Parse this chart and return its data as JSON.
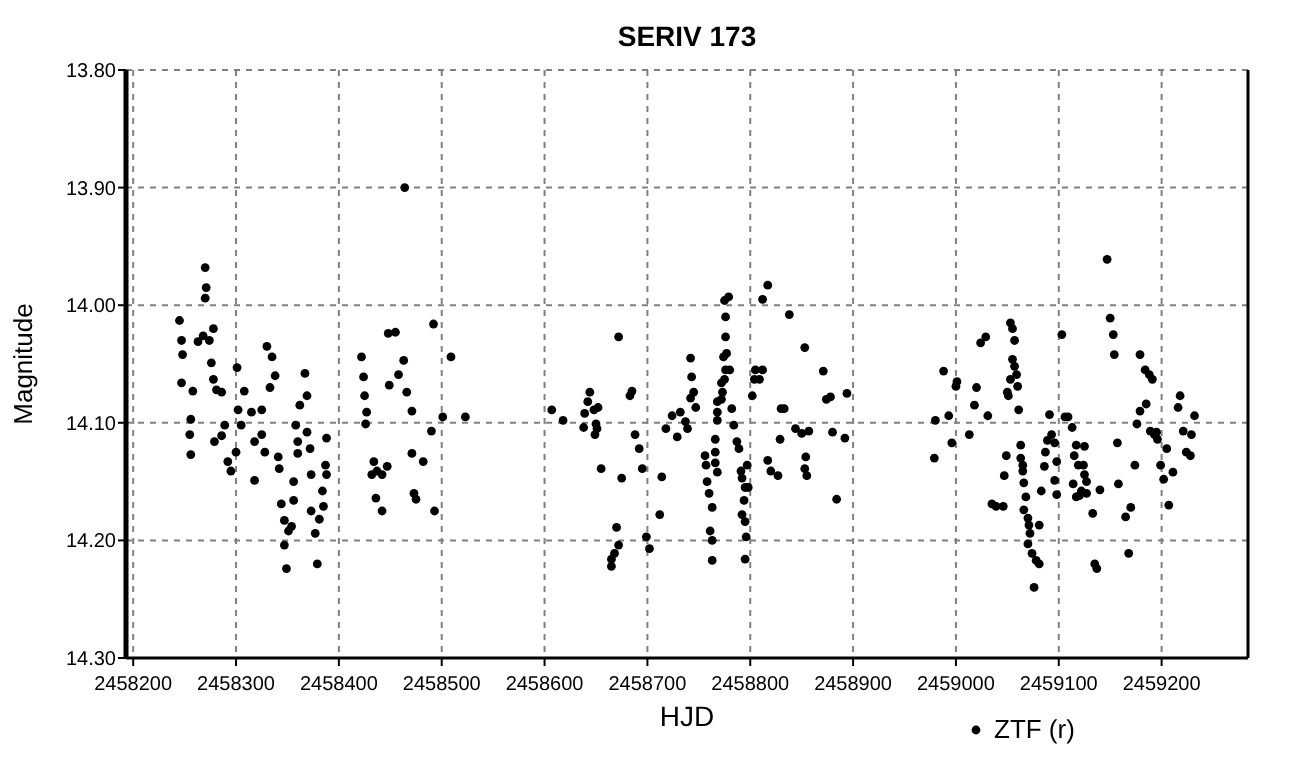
{
  "chart_data": {
    "type": "scatter",
    "title": "SERIV 173",
    "xlabel": "HJD",
    "ylabel": "Magnitude",
    "xlim": [
      2458193,
      2459284
    ],
    "ylim": [
      14.3,
      13.8
    ],
    "xticks": [
      2458200,
      2458300,
      2458400,
      2458500,
      2458600,
      2458700,
      2458800,
      2458900,
      2459000,
      2459100,
      2459200
    ],
    "yticks": [
      {
        "value": 13.8,
        "label": "13.80"
      },
      {
        "value": 13.9,
        "label": "13.90"
      },
      {
        "value": 14.0,
        "label": "14.00"
      },
      {
        "value": 14.1,
        "label": "14.10"
      },
      {
        "value": 14.2,
        "label": "14.20"
      },
      {
        "value": 14.3,
        "label": "14.30"
      }
    ],
    "grid": true,
    "legend": "bottom right",
    "marker": "circle",
    "series": [
      {
        "name": "ZTF (r)",
        "color": "#000000",
        "x": [
          2458245,
          2458247,
          2458248,
          2458247,
          2458258,
          2458256,
          2458255,
          2458256,
          2458270,
          2458271,
          2458270,
          2458268,
          2458263,
          2458274,
          2458278,
          2458276,
          2458278,
          2458281,
          2458286,
          2458279,
          2458286,
          2458289,
          2458292,
          2458295,
          2458300,
          2458301,
          2458308,
          2458302,
          2458305,
          2458315,
          2458318,
          2458325,
          2458330,
          2458335,
          2458338,
          2458333,
          2458325,
          2458328,
          2458318,
          2458341,
          2458342,
          2458344,
          2458347,
          2458351,
          2458347,
          2458349,
          2458356,
          2458356,
          2458354,
          2458358,
          2458360,
          2458362,
          2458367,
          2458369,
          2458360,
          2458372,
          2458369,
          2458373,
          2458373,
          2458377,
          2458379,
          2458381,
          2458384,
          2458387,
          2458388,
          2458388,
          2458385,
          2458422,
          2458424,
          2458425,
          2458427,
          2458426,
          2458434,
          2458432,
          2458437,
          2458442,
          2458447,
          2458436,
          2458442,
          2458448,
          2458455,
          2458458,
          2458463,
          2458449,
          2458466,
          2458471,
          2458471,
          2458473,
          2458475,
          2458482,
          2458490,
          2458492,
          2458493,
          2458501,
          2458509,
          2458523,
          2458464,
          2458607,
          2458618,
          2458638,
          2458639,
          2458644,
          2458642,
          2458648,
          2458652,
          2458650,
          2458651,
          2458649,
          2458655,
          2458672,
          2458675,
          2458670,
          2458672,
          2458665,
          2458665,
          2458668,
          2458683,
          2458685,
          2458688,
          2458692,
          2458695,
          2458699,
          2458702,
          2458712,
          2458714,
          2458718,
          2458724,
          2458729,
          2458732,
          2458737,
          2458739,
          2458742,
          2458743,
          2458742,
          2458745,
          2458747,
          2458756,
          2458757,
          2458758,
          2458760,
          2458763,
          2458761,
          2458763,
          2458763,
          2458766,
          2458766,
          2458768,
          2458768,
          2458768,
          2458768,
          2458766,
          2458775,
          2458776,
          2458776,
          2458774,
          2458776,
          2458775,
          2458779,
          2458777,
          2458780,
          2458772,
          2458773,
          2458772,
          2458782,
          2458784,
          2458787,
          2458789,
          2458791,
          2458792,
          2458795,
          2458794,
          2458792,
          2458795,
          2458796,
          2458795,
          2458798,
          2458797,
          2458802,
          2458804,
          2458805,
          2458812,
          2458809,
          2458812,
          2458817,
          2458817,
          2458820,
          2458827,
          2458829,
          2458830,
          2458833,
          2458838,
          2458844,
          2458850,
          2458853,
          2458854,
          2458853,
          2458855,
          2458857,
          2458871,
          2458874,
          2458878,
          2458880,
          2458884,
          2458892,
          2458894,
          2458980,
          2458979,
          2458988,
          2458993,
          2458996,
          2459000,
          2459001,
          2459013,
          2459018,
          2459020,
          2459024,
          2459029,
          2459031,
          2459035,
          2459039,
          2459046,
          2459047,
          2459049,
          2459053,
          2459055,
          2459057,
          2459055,
          2459057,
          2459059,
          2459053,
          2459050,
          2459051,
          2459060,
          2459061,
          2459063,
          2459063,
          2459065,
          2459065,
          2459066,
          2459068,
          2459066,
          2459070,
          2459071,
          2459072,
          2459070,
          2459074,
          2459078,
          2459081,
          2459076,
          2459081,
          2459083,
          2459086,
          2459087,
          2459089,
          2459093,
          2459091,
          2459096,
          2459098,
          2459096,
          2459098,
          2459103,
          2459106,
          2459109,
          2459113,
          2459117,
          2459115,
          2459119,
          2459124,
          2459125,
          2459125,
          2459127,
          2459122,
          2459114,
          2459117,
          2459120,
          2459127,
          2459133,
          2459135,
          2459137,
          2459140,
          2459147,
          2459150,
          2459153,
          2459154,
          2459157,
          2459158,
          2459165,
          2459170,
          2459168,
          2459174,
          2459176,
          2459179,
          2459179,
          2459185,
          2459184,
          2459188,
          2459191,
          2459189,
          2459193,
          2459196,
          2459195,
          2459199,
          2459202,
          2459205,
          2459207,
          2459211,
          2459216,
          2459218,
          2459221,
          2459224,
          2459228,
          2459229,
          2459232
        ],
        "values": [
          14.013,
          14.03,
          14.042,
          14.066,
          14.073,
          14.097,
          14.11,
          14.127,
          13.968,
          13.985,
          13.994,
          14.026,
          14.031,
          14.03,
          14.02,
          14.049,
          14.063,
          14.072,
          14.074,
          14.116,
          14.111,
          14.102,
          14.133,
          14.141,
          14.125,
          14.053,
          14.073,
          14.089,
          14.102,
          14.091,
          14.116,
          14.089,
          14.035,
          14.044,
          14.06,
          14.07,
          14.11,
          14.125,
          14.149,
          14.129,
          14.139,
          14.169,
          14.183,
          14.192,
          14.204,
          14.224,
          14.15,
          14.166,
          14.188,
          14.102,
          14.116,
          14.085,
          14.058,
          14.077,
          14.126,
          14.122,
          14.108,
          14.144,
          14.175,
          14.194,
          14.22,
          14.182,
          14.158,
          14.136,
          14.113,
          14.144,
          14.171,
          14.044,
          14.061,
          14.077,
          14.091,
          14.101,
          14.133,
          14.144,
          14.141,
          14.144,
          14.137,
          14.164,
          14.175,
          14.024,
          14.023,
          14.059,
          14.047,
          14.068,
          14.074,
          14.09,
          14.126,
          14.16,
          14.165,
          14.133,
          14.107,
          14.016,
          14.175,
          14.095,
          14.044,
          14.095,
          13.9,
          14.089,
          14.098,
          14.104,
          14.092,
          14.074,
          14.082,
          14.089,
          14.087,
          14.101,
          14.105,
          14.11,
          14.139,
          14.027,
          14.147,
          14.189,
          14.204,
          14.216,
          14.222,
          14.211,
          14.077,
          14.073,
          14.11,
          14.122,
          14.139,
          14.197,
          14.207,
          14.178,
          14.146,
          14.105,
          14.094,
          14.112,
          14.091,
          14.099,
          14.105,
          14.045,
          14.061,
          14.079,
          14.074,
          14.087,
          14.128,
          14.136,
          14.15,
          14.16,
          14.172,
          14.192,
          14.2,
          14.217,
          14.125,
          14.114,
          14.098,
          14.091,
          14.082,
          14.142,
          14.134,
          13.996,
          14.01,
          14.027,
          14.044,
          14.055,
          14.063,
          13.993,
          14.041,
          14.055,
          14.066,
          14.074,
          14.08,
          14.088,
          14.102,
          14.116,
          14.122,
          14.141,
          14.147,
          14.155,
          14.166,
          14.178,
          14.184,
          14.197,
          14.216,
          14.155,
          14.136,
          14.077,
          14.063,
          14.055,
          14.055,
          14.063,
          13.995,
          13.983,
          14.132,
          14.141,
          14.145,
          14.114,
          14.088,
          14.088,
          14.008,
          14.105,
          14.109,
          14.036,
          14.129,
          14.139,
          14.145,
          14.107,
          14.056,
          14.08,
          14.078,
          14.108,
          14.165,
          14.113,
          14.075,
          14.098,
          14.13,
          14.056,
          14.094,
          14.117,
          14.069,
          14.065,
          14.11,
          14.085,
          14.07,
          14.032,
          14.027,
          14.094,
          14.169,
          14.171,
          14.171,
          14.145,
          14.128,
          14.015,
          14.02,
          14.03,
          14.046,
          14.052,
          14.059,
          14.063,
          14.074,
          14.077,
          14.069,
          14.089,
          14.119,
          14.13,
          14.136,
          14.141,
          14.151,
          14.163,
          14.174,
          14.181,
          14.187,
          14.194,
          14.203,
          14.211,
          14.217,
          14.22,
          14.24,
          14.187,
          14.158,
          14.137,
          14.125,
          14.115,
          14.11,
          14.093,
          14.117,
          14.133,
          14.149,
          14.161,
          14.025,
          14.095,
          14.095,
          14.104,
          14.119,
          14.128,
          14.136,
          14.136,
          14.144,
          14.12,
          14.15,
          14.158,
          14.152,
          14.163,
          14.162,
          14.16,
          14.177,
          14.22,
          14.224,
          14.157,
          13.961,
          14.011,
          14.025,
          14.042,
          14.117,
          14.152,
          14.18,
          14.172,
          14.211,
          14.136,
          14.101,
          14.042,
          14.09,
          14.084,
          14.055,
          14.059,
          14.063,
          14.107,
          14.11,
          14.114,
          14.108,
          14.136,
          14.148,
          14.122,
          14.17,
          14.142,
          14.087,
          14.077,
          14.107,
          14.125,
          14.128,
          14.11,
          14.094
        ]
      }
    ]
  }
}
